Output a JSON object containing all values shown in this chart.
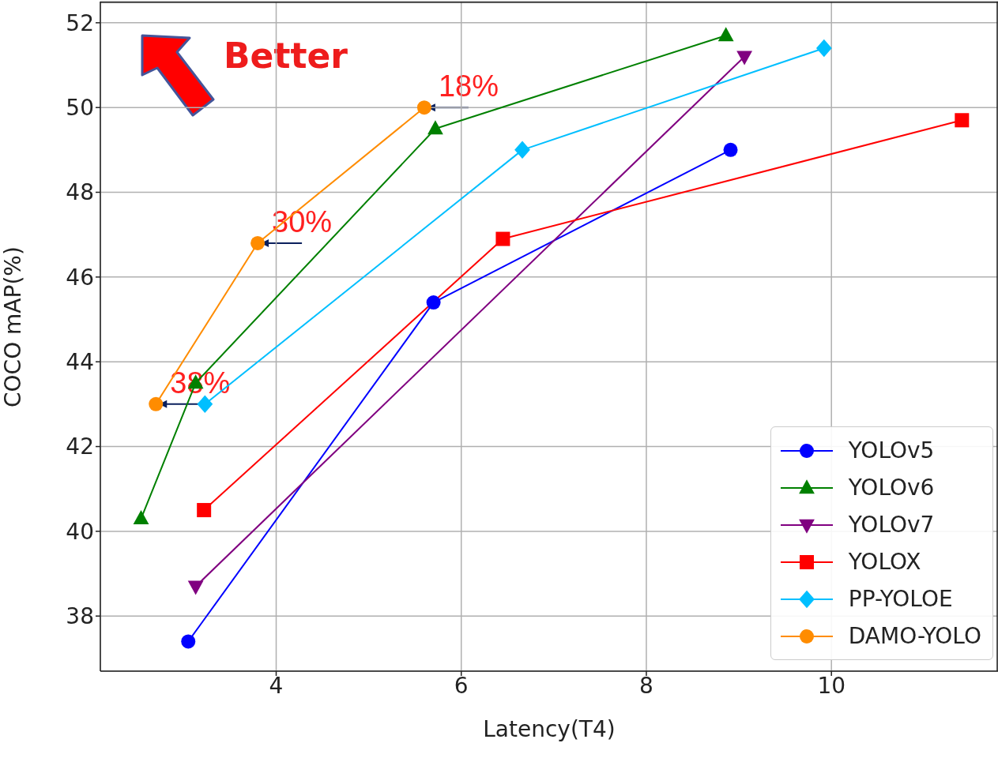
{
  "chart_data": {
    "type": "line",
    "xlabel": "Latency(T4)",
    "ylabel": "COCO mAP(%)",
    "xlim": [
      2.1,
      11.8
    ],
    "ylim": [
      36.7,
      52.5
    ],
    "xticks": [
      4,
      6,
      8,
      10
    ],
    "yticks": [
      38,
      40,
      42,
      44,
      46,
      48,
      50,
      52
    ],
    "grid": true,
    "legend": "bottom right",
    "series": [
      {
        "name": "YOLOv5",
        "color": "#0000ff",
        "marker": "circle",
        "x": [
          3.05,
          5.7,
          8.91
        ],
        "values": [
          37.4,
          45.4,
          49.0
        ]
      },
      {
        "name": "YOLOv6",
        "color": "#008000",
        "marker": "triangle",
        "x": [
          2.54,
          3.13,
          5.72,
          8.86
        ],
        "values": [
          40.3,
          43.5,
          49.5,
          51.7
        ]
      },
      {
        "name": "YOLOv7",
        "color": "#800080",
        "marker": "triangle-down",
        "x": [
          3.13,
          9.06
        ],
        "values": [
          38.7,
          51.2
        ]
      },
      {
        "name": "YOLOX",
        "color": "#ff0000",
        "marker": "square",
        "x": [
          3.22,
          6.45,
          11.41
        ],
        "values": [
          40.5,
          46.9,
          49.7
        ]
      },
      {
        "name": "PP-YOLOE",
        "color": "#00bfff",
        "marker": "diamond",
        "x": [
          3.23,
          6.66,
          9.92
        ],
        "values": [
          43.0,
          49.0,
          51.4
        ]
      },
      {
        "name": "DAMO-YOLO",
        "color": "#ff8c00",
        "marker": "circle",
        "x": [
          2.7,
          3.8,
          5.6
        ],
        "values": [
          43.0,
          46.8,
          50.0
        ]
      }
    ],
    "annotations": [
      "Better",
      {
        "text": "18%",
        "x": 5.6,
        "y": 50.0
      },
      {
        "text": "30%",
        "x": 3.8,
        "y": 46.8
      },
      {
        "text": "38%",
        "x": 2.7,
        "y": 43.0
      }
    ]
  }
}
